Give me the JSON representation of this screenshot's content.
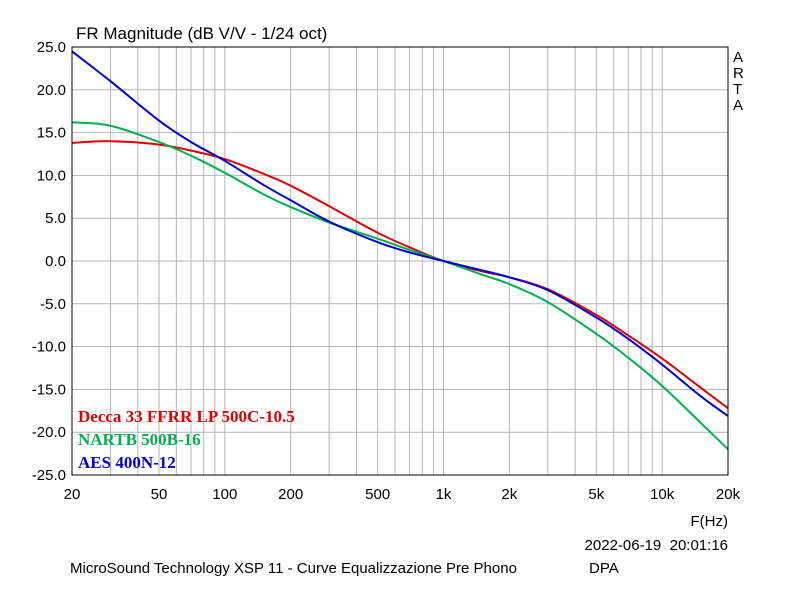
{
  "chart_data": {
    "type": "line",
    "title": "FR Magnitude (dB V/V - 1/24 oct)",
    "xlabel": "F(Hz)",
    "ylabel": "",
    "x_scale": "log",
    "xlim": [
      20,
      20000
    ],
    "ylim": [
      -25,
      25
    ],
    "grid": true,
    "x_ticks": [
      {
        "value": 20,
        "label": "20"
      },
      {
        "value": 50,
        "label": "50"
      },
      {
        "value": 100,
        "label": "100"
      },
      {
        "value": 200,
        "label": "200"
      },
      {
        "value": 500,
        "label": "500"
      },
      {
        "value": 1000,
        "label": "1k"
      },
      {
        "value": 2000,
        "label": "2k"
      },
      {
        "value": 5000,
        "label": "5k"
      },
      {
        "value": 10000,
        "label": "10k"
      },
      {
        "value": 20000,
        "label": "20k"
      }
    ],
    "y_ticks": [
      {
        "value": 25,
        "label": "25.0"
      },
      {
        "value": 20,
        "label": "20.0"
      },
      {
        "value": 15,
        "label": "15.0"
      },
      {
        "value": 10,
        "label": "10.0"
      },
      {
        "value": 5,
        "label": "5.0"
      },
      {
        "value": 0,
        "label": "0.0"
      },
      {
        "value": -5,
        "label": "-5.0"
      },
      {
        "value": -10,
        "label": "-10.0"
      },
      {
        "value": -15,
        "label": "-15.0"
      },
      {
        "value": -20,
        "label": "-20.0"
      },
      {
        "value": -25,
        "label": "-25.0"
      }
    ],
    "legend_position": "bottom-left",
    "series": [
      {
        "name": "Decca 33 FFRR LP 500C-10.5",
        "color": "#e00000",
        "x": [
          20,
          30,
          50,
          70,
          100,
          150,
          200,
          300,
          500,
          700,
          1000,
          1500,
          2000,
          3000,
          5000,
          7000,
          10000,
          15000,
          20000
        ],
        "y": [
          13.8,
          14.0,
          13.6,
          12.9,
          11.9,
          10.2,
          8.8,
          6.4,
          3.3,
          1.6,
          0.0,
          -1.2,
          -1.9,
          -3.3,
          -6.3,
          -8.7,
          -11.4,
          -14.8,
          -17.2
        ]
      },
      {
        "name": "NARTB 500B-16",
        "color": "#00b050",
        "x": [
          20,
          30,
          50,
          70,
          100,
          150,
          200,
          300,
          500,
          700,
          1000,
          1500,
          2000,
          3000,
          5000,
          7000,
          10000,
          15000,
          20000
        ],
        "y": [
          16.2,
          15.8,
          13.9,
          12.3,
          10.3,
          7.8,
          6.3,
          4.5,
          2.6,
          1.3,
          0.0,
          -1.6,
          -2.7,
          -4.8,
          -8.5,
          -11.3,
          -14.6,
          -18.9,
          -22.0
        ]
      },
      {
        "name": "AES 400N-12",
        "color": "#0000d0",
        "x": [
          20,
          30,
          50,
          70,
          100,
          150,
          200,
          300,
          500,
          700,
          1000,
          1500,
          2000,
          3000,
          5000,
          7000,
          10000,
          15000,
          20000
        ],
        "y": [
          24.5,
          21.0,
          16.4,
          13.9,
          11.7,
          8.9,
          7.1,
          4.6,
          2.2,
          1.0,
          0.0,
          -1.1,
          -1.9,
          -3.4,
          -6.6,
          -9.1,
          -12.1,
          -15.8,
          -18.1
        ]
      }
    ]
  },
  "side_label": [
    "A",
    "R",
    "T",
    "A"
  ],
  "timestamp": "2022-06-19  20:01:16",
  "footer": "MicroSound Technology XSP 11 - Curve Equalizzazione Pre Phono",
  "footer_right": "DPA"
}
